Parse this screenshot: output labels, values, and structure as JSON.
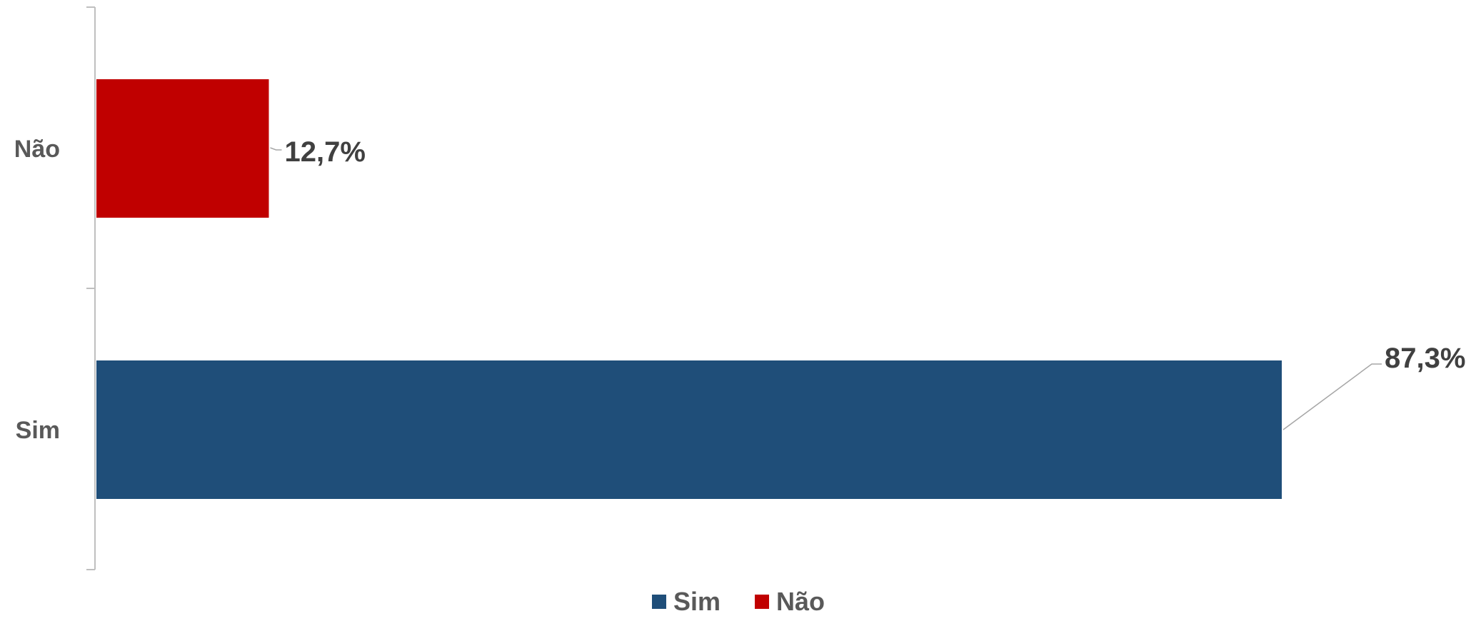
{
  "chart_data": {
    "type": "bar",
    "orientation": "horizontal",
    "categories": [
      "Sim",
      "Não"
    ],
    "series": [
      {
        "name": "Sim",
        "category": "Sim",
        "value": 87.3,
        "label": "87,3%",
        "color": "#1F4E79"
      },
      {
        "name": "Não",
        "category": "Não",
        "value": 12.7,
        "label": "12,7%",
        "color": "#C00000"
      }
    ],
    "xlim": [
      0,
      100
    ],
    "grid": false,
    "legend_position": "bottom"
  },
  "legend": {
    "items": [
      {
        "label": "Sim",
        "color": "#1F4E79"
      },
      {
        "label": "Não",
        "color": "#C00000"
      }
    ]
  }
}
